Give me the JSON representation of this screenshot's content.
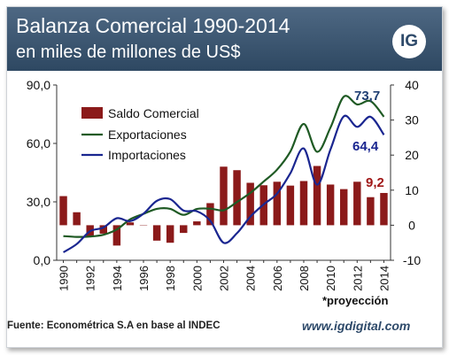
{
  "header": {
    "title": "Balanza Comercial 1990-2014",
    "subtitle": "en miles de millones de US$",
    "logo": "IG"
  },
  "footer": {
    "source": "Fuente: Econométrica S.A en base al INDEC",
    "website": "www.igdigital.com",
    "note": "*proyección"
  },
  "colors": {
    "header_bg": "#3b5572",
    "saldo": "#8b1a1a",
    "exportaciones": "#1f5a24",
    "importaciones": "#1a2690",
    "label_export": "#1f3f73",
    "label_import": "#1a2690",
    "label_saldo": "#a01818"
  },
  "chart_data": {
    "type": "bar+line",
    "x": [
      1990,
      1991,
      1992,
      1993,
      1994,
      1995,
      1996,
      1997,
      1998,
      1999,
      2000,
      2001,
      2002,
      2003,
      2004,
      2005,
      2006,
      2007,
      2008,
      2009,
      2010,
      2011,
      2012,
      2013,
      2014
    ],
    "x_tick_labels": [
      "1990",
      "1992",
      "1994",
      "1996",
      "1998",
      "2000",
      "2002",
      "2004",
      "2006",
      "2008",
      "2010",
      "2012",
      "2014"
    ],
    "y_left": {
      "ticks": [
        "0,0",
        "30,0",
        "60,0",
        "90,0"
      ],
      "lim": [
        0,
        90
      ]
    },
    "y_right": {
      "ticks": [
        "-10",
        "0",
        "10",
        "20",
        "30",
        "40"
      ],
      "lim": [
        -10,
        40
      ]
    },
    "series": [
      {
        "name": "Saldo Comercial",
        "type": "bar",
        "axis": "right",
        "values": [
          8.3,
          3.7,
          -3.2,
          -2.4,
          -5.8,
          0.8,
          -0.1,
          -4.4,
          -5.0,
          -2.2,
          1.1,
          6.3,
          16.7,
          15.7,
          12.1,
          11.4,
          12.4,
          11.3,
          12.6,
          16.9,
          11.6,
          10.3,
          12.4,
          8.0,
          9.2
        ]
      },
      {
        "name": "Exportaciones",
        "type": "line",
        "axis": "left",
        "values": [
          12.4,
          12.0,
          12.2,
          13.1,
          15.8,
          21.0,
          23.8,
          26.4,
          26.4,
          23.3,
          26.3,
          26.5,
          25.7,
          29.9,
          34.6,
          40.4,
          46.5,
          55.8,
          70.0,
          55.7,
          68.1,
          84.0,
          80.0,
          81.7,
          73.7
        ]
      },
      {
        "name": "Importaciones",
        "type": "line",
        "axis": "left",
        "values": [
          4.1,
          8.3,
          14.9,
          16.8,
          21.6,
          20.1,
          23.9,
          30.5,
          31.4,
          25.5,
          25.2,
          20.3,
          9.0,
          13.9,
          22.4,
          28.7,
          34.2,
          44.7,
          57.4,
          38.8,
          56.8,
          73.9,
          68.5,
          73.7,
          64.4
        ]
      }
    ],
    "data_labels": {
      "exportaciones": "73,7",
      "importaciones": "64,4",
      "saldo": "9,2"
    }
  }
}
